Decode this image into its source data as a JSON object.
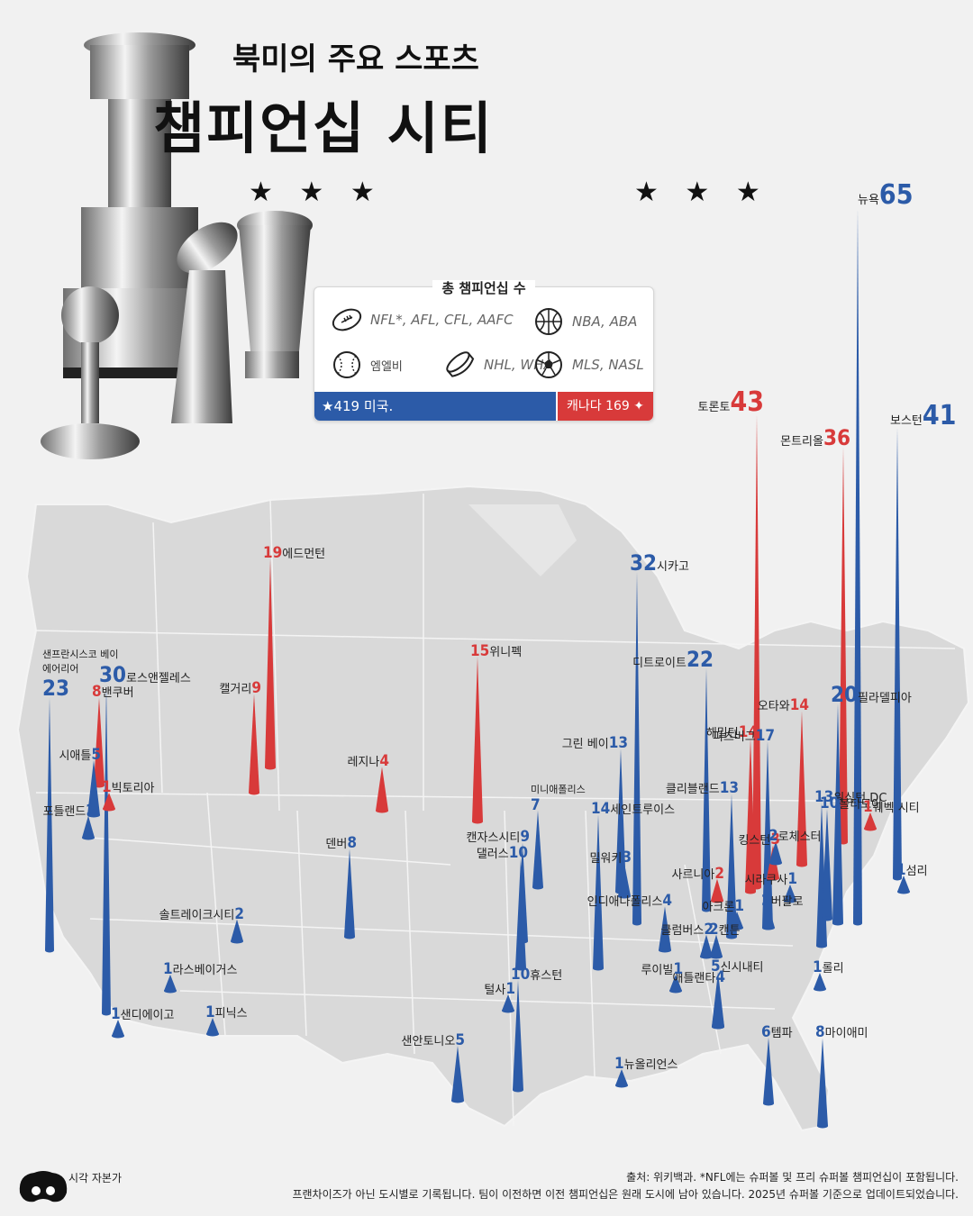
{
  "header": {
    "title_line1": "북미의 주요 스포츠",
    "title_line2": "챔피언십 시티",
    "stars_left": "★ ★ ★",
    "stars_right": "★ ★ ★"
  },
  "legend": {
    "title": "총 챔피언십 수",
    "items": [
      {
        "icon": "football-icon",
        "label": "NFL*, AFL, CFL, AAFC"
      },
      {
        "icon": "basketball-icon",
        "label": "NBA, ABA"
      },
      {
        "icon": "baseball-icon",
        "label": "엠엘비"
      },
      {
        "icon": "hockey-puck-icon",
        "label": "NHL, WHA"
      },
      {
        "icon": "soccer-ball-icon",
        "label": "MLS, NASL"
      }
    ],
    "us_total": "★419 미국.",
    "ca_total": "캐나다 169"
  },
  "colors": {
    "us": "#2c5ba8",
    "canada": "#d83a3a",
    "map": "#d9d9d9",
    "background": "#f1f1f1"
  },
  "cities": [
    {
      "name": "뉴욕",
      "count": 65,
      "country": "us"
    },
    {
      "name": "토론토",
      "count": 43,
      "country": "ca"
    },
    {
      "name": "보스턴",
      "count": 41,
      "country": "us"
    },
    {
      "name": "몬트리올",
      "count": 36,
      "country": "ca"
    },
    {
      "name": "시카고",
      "count": 32,
      "country": "us"
    },
    {
      "name": "로스앤젤레스",
      "count": 30,
      "country": "us"
    },
    {
      "name": "샌프란시스코 베이 에어리어",
      "count": 23,
      "country": "us"
    },
    {
      "name": "디트로이트",
      "count": 22,
      "country": "us"
    },
    {
      "name": "필라델피아",
      "count": 20,
      "country": "us"
    },
    {
      "name": "에드먼턴",
      "count": 19,
      "country": "ca"
    },
    {
      "name": "해밀턴",
      "count": 14,
      "country": "ca"
    },
    {
      "name": "오타와",
      "count": 14,
      "country": "ca"
    },
    {
      "name": "세인트루이스",
      "count": 14,
      "country": "us"
    },
    {
      "name": "그린 베이",
      "count": 13,
      "country": "us"
    },
    {
      "name": "클리블랜드",
      "count": 13,
      "country": "us"
    },
    {
      "name": "워싱턴 DC",
      "count": 13,
      "country": "us"
    },
    {
      "name": "피츠버그",
      "count": 17,
      "country": "us"
    },
    {
      "name": "위니펙",
      "count": 15,
      "country": "ca"
    },
    {
      "name": "볼티모어",
      "count": 10,
      "country": "us"
    },
    {
      "name": "댈러스",
      "count": 10,
      "country": "us"
    },
    {
      "name": "휴스턴",
      "count": 10,
      "country": "us"
    },
    {
      "name": "캘거리",
      "count": 9,
      "country": "ca"
    },
    {
      "name": "캔자스시티",
      "count": 9,
      "country": "us"
    },
    {
      "name": "밴쿠버",
      "count": 8,
      "country": "ca"
    },
    {
      "name": "덴버",
      "count": 8,
      "country": "us"
    },
    {
      "name": "마이애미",
      "count": 8,
      "country": "us"
    },
    {
      "name": "미니애폴리스",
      "count": 7,
      "country": "us"
    },
    {
      "name": "템파",
      "count": 6,
      "country": "us"
    },
    {
      "name": "시애틀",
      "count": 5,
      "country": "us"
    },
    {
      "name": "샌안토니오",
      "count": 5,
      "country": "us"
    },
    {
      "name": "신시내티",
      "count": 5,
      "country": "us"
    },
    {
      "name": "레지나",
      "count": 4,
      "country": "ca"
    },
    {
      "name": "인디애나폴리스",
      "count": 4,
      "country": "us"
    },
    {
      "name": "애틀랜타",
      "count": 4,
      "country": "us"
    },
    {
      "name": "밀워키",
      "count": 3,
      "country": "us"
    },
    {
      "name": "킹스턴",
      "count": 3,
      "country": "ca"
    },
    {
      "name": "포틀랜드",
      "count": 2,
      "country": "us"
    },
    {
      "name": "솔트레이크시티",
      "count": 2,
      "country": "us"
    },
    {
      "name": "사르니아",
      "count": 2,
      "country": "ca"
    },
    {
      "name": "캔튼",
      "count": 2,
      "country": "us"
    },
    {
      "name": "클럼버스",
      "count": 2,
      "country": "us"
    },
    {
      "name": "버팔로",
      "count": 2,
      "country": "us"
    },
    {
      "name": "로체스터",
      "count": 2,
      "country": "us"
    },
    {
      "name": "빅토리아",
      "count": 1,
      "country": "ca"
    },
    {
      "name": "퀘벡 시티",
      "count": 1,
      "country": "ca"
    },
    {
      "name": "라스베이거스",
      "count": 1,
      "country": "us"
    },
    {
      "name": "샌디에이고",
      "count": 1,
      "country": "us"
    },
    {
      "name": "피닉스",
      "count": 1,
      "country": "us"
    },
    {
      "name": "털사",
      "count": 1,
      "country": "us"
    },
    {
      "name": "루이빌",
      "count": 1,
      "country": "us"
    },
    {
      "name": "뉴올리언스",
      "count": 1,
      "country": "us"
    },
    {
      "name": "롤리",
      "count": 1,
      "country": "us"
    },
    {
      "name": "시라쿠사",
      "count": 1,
      "country": "us"
    },
    {
      "name": "섬리",
      "count": 1,
      "country": "us"
    },
    {
      "name": "아크론",
      "count": 1,
      "country": "us"
    }
  ],
  "footer": {
    "line1": "출처: 위키백과. *NFL에는 슈퍼볼 및 프리 슈퍼볼 챔피언십이 포함됩니다.",
    "line2": "프랜차이즈가 아닌 도시별로 기록됩니다. 팀이 이전하면 이전 챔피언십은 원래 도시에 남아 있습니다. 2025년 슈퍼볼 기준으로 업데이트되었습니다.",
    "brand": "시각 자본가"
  }
}
